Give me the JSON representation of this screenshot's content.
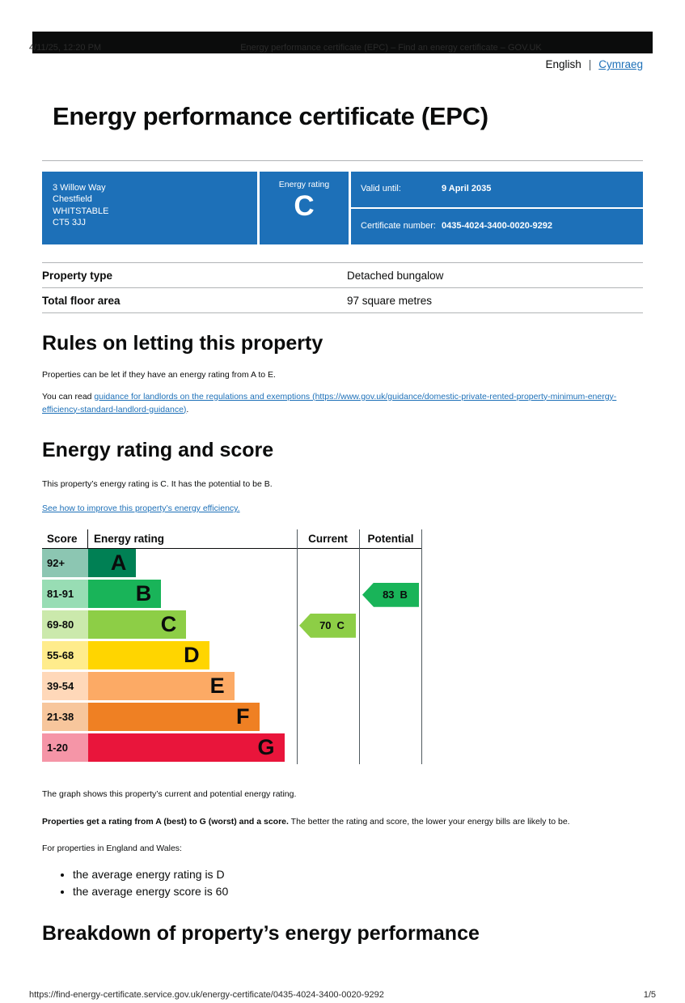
{
  "print_header": {
    "timestamp": "4/11/25, 12:20 PM",
    "doc_title": "Energy performance certificate (EPC) – Find an energy certificate – GOV.UK"
  },
  "language": {
    "english": "English",
    "separator": "|",
    "cymraeg": "Cymraeg"
  },
  "page": {
    "title": "Energy performance certificate (EPC)"
  },
  "certificate": {
    "address_lines": [
      "3 Willow Way",
      "Chestfield",
      "WHITSTABLE",
      "CT5 3JJ"
    ],
    "energy_rating_label": "Energy rating",
    "energy_rating": "C",
    "valid_until_label": "Valid until:",
    "valid_until": "9 April 2035",
    "certificate_number_label": "Certificate number:",
    "certificate_number": "0435-4024-3400-0020-9292",
    "box_color": "#1d70b8"
  },
  "property": {
    "rows": [
      {
        "label": "Property type",
        "value": "Detached bungalow"
      },
      {
        "label": "Total floor area",
        "value": "97 square metres"
      }
    ]
  },
  "rules": {
    "heading": "Rules on letting this property",
    "p1": "Properties can be let if they have an energy rating from A to E.",
    "p2_prefix": "You can read ",
    "p2_link": "guidance for landlords on the regulations and exemptions (https://www.gov.uk/guidance/domestic-private-rented-property-minimum-energy-efficiency-standard-landlord-guidance)",
    "p2_suffix": "."
  },
  "rating_section": {
    "heading": "Energy rating and score",
    "intro": "This property’s energy rating is C. It has the potential to be B.",
    "improve_link": "See how to improve this property’s energy efficiency."
  },
  "chart_data": {
    "type": "bar",
    "title": "Energy rating and score chart",
    "headers": {
      "score": "Score",
      "rating": "Energy rating",
      "current": "Current",
      "potential": "Potential"
    },
    "bands": [
      {
        "score": "92+",
        "letter": "A",
        "color": "#008054",
        "tint": "#8cc6b2",
        "width_pct": 23
      },
      {
        "score": "81-91",
        "letter": "B",
        "color": "#19b459",
        "tint": "#98ddb4",
        "width_pct": 35
      },
      {
        "score": "69-80",
        "letter": "C",
        "color": "#8dce46",
        "tint": "#cbe9ac",
        "width_pct": 47
      },
      {
        "score": "55-68",
        "letter": "D",
        "color": "#ffd500",
        "tint": "#ffec8c",
        "width_pct": 58
      },
      {
        "score": "39-54",
        "letter": "E",
        "color": "#fcaa65",
        "tint": "#ffd8b9",
        "width_pct": 70
      },
      {
        "score": "21-38",
        "letter": "F",
        "color": "#ef8023",
        "tint": "#f7c69c",
        "width_pct": 82
      },
      {
        "score": "1-20",
        "letter": "G",
        "color": "#e9153b",
        "tint": "#f595a7",
        "width_pct": 94
      }
    ],
    "current": {
      "value": 70,
      "letter": "C",
      "band": "C",
      "color": "#8dce46"
    },
    "potential": {
      "value": 83,
      "letter": "B",
      "band": "B",
      "color": "#19b459"
    }
  },
  "explanation": {
    "p1": "The graph shows this property’s current and potential energy rating.",
    "p2_bold": "Properties get a rating from A (best) to G (worst) and a score.",
    "p2_rest": " The better the rating and score, the lower your energy bills are likely to be.",
    "p3": "For properties in England and Wales:",
    "bullets": [
      "the average energy rating is D",
      "the average energy score is 60"
    ]
  },
  "breakdown": {
    "heading": "Breakdown of property’s energy performance"
  },
  "print_footer": {
    "url": "https://find-energy-certificate.service.gov.uk/energy-certificate/0435-4024-3400-0020-9292",
    "page": "1/5"
  }
}
